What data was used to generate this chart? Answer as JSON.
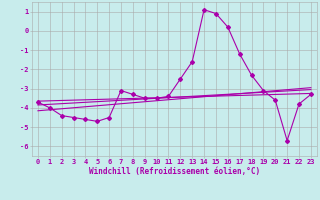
{
  "title": "",
  "xlabel": "Windchill (Refroidissement éolien,°C)",
  "ylabel": "",
  "bg_color": "#c8ecec",
  "line_color": "#aa00aa",
  "grid_color": "#aaaaaa",
  "xlim": [
    -0.5,
    23.5
  ],
  "ylim": [
    -6.5,
    1.5
  ],
  "yticks": [
    1,
    0,
    -1,
    -2,
    -3,
    -4,
    -5,
    -6
  ],
  "xticks": [
    0,
    1,
    2,
    3,
    4,
    5,
    6,
    7,
    8,
    9,
    10,
    11,
    12,
    13,
    14,
    15,
    16,
    17,
    18,
    19,
    20,
    21,
    22,
    23
  ],
  "x": [
    0,
    1,
    2,
    3,
    4,
    5,
    6,
    7,
    8,
    9,
    10,
    11,
    12,
    13,
    14,
    15,
    16,
    17,
    18,
    19,
    20,
    21,
    22,
    23
  ],
  "y": [
    -3.7,
    -4.0,
    -4.4,
    -4.5,
    -4.6,
    -4.7,
    -4.5,
    -3.1,
    -3.3,
    -3.5,
    -3.5,
    -3.4,
    -2.5,
    -1.6,
    1.1,
    0.9,
    0.2,
    -1.2,
    -2.3,
    -3.1,
    -3.6,
    -5.7,
    -3.8,
    -3.3
  ],
  "reg_lines": [
    {
      "x0": 0,
      "y0": -3.65,
      "x1": 23,
      "y1": -3.25
    },
    {
      "x0": 0,
      "y0": -3.85,
      "x1": 23,
      "y1": -3.05
    },
    {
      "x0": 0,
      "y0": -4.15,
      "x1": 23,
      "y1": -2.95
    }
  ],
  "tick_fontsize": 5.0,
  "xlabel_fontsize": 5.5
}
